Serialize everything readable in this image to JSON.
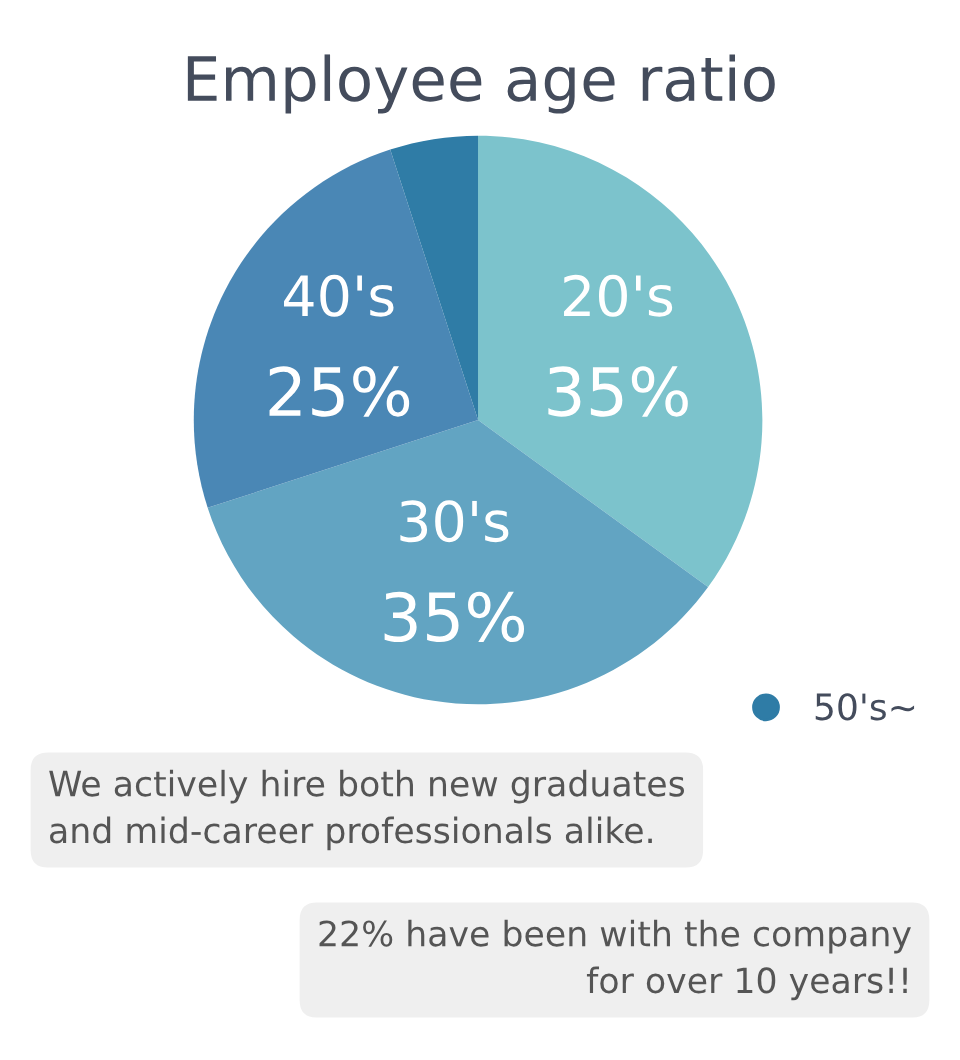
{
  "chart_data": {
    "type": "pie",
    "title": "Employee age ratio",
    "categories": [
      "20's",
      "30's",
      "40's",
      "50's~"
    ],
    "values": [
      35,
      35,
      25,
      5
    ],
    "value_labels": [
      "35%",
      "35%",
      "25%",
      null
    ],
    "colors": [
      "#7cc3cc",
      "#62a4c2",
      "#4a87b5",
      "#2f7ca6"
    ],
    "legend": "bottom right",
    "annotations": [
      "We actively hire both new graduates\nand mid-career professionals alike.",
      "22% have been with the company\nfor over 10 years!!"
    ]
  }
}
